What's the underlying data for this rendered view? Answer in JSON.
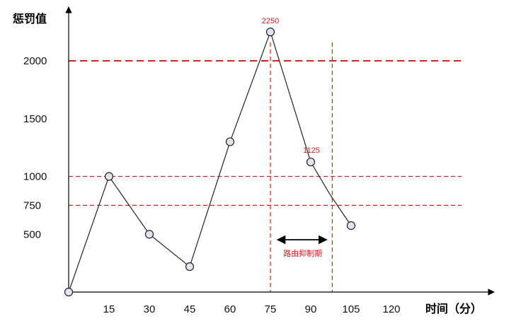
{
  "chart_data": {
    "type": "line",
    "xlabel": "时间（分）",
    "ylabel": "惩罚值",
    "x_ticks": [
      "15",
      "30",
      "45",
      "60",
      "75",
      "90",
      "105",
      "120"
    ],
    "y_ticks": [
      "500",
      "750",
      "1000",
      "1500",
      "2000"
    ],
    "xlim": [
      0,
      128
    ],
    "ylim": [
      0,
      2400
    ],
    "series": [
      {
        "x": [
          0,
          15,
          30,
          45,
          60,
          75,
          90,
          97,
          105
        ],
        "y": [
          0,
          1000,
          500,
          220,
          1300,
          2250,
          1125,
          850,
          575
        ]
      }
    ],
    "reference_lines": {
      "horizontal": [
        2000,
        1000,
        750
      ],
      "vertical": [
        75,
        98
      ]
    },
    "annotations": [
      {
        "text": "2250",
        "x": 75,
        "y": 2250
      },
      {
        "text": "1125",
        "x": 90,
        "y": 1125
      },
      {
        "text": "路由抑制期",
        "from": 75,
        "to": 98
      }
    ],
    "colors": {
      "axis": "#000000",
      "series": "#222222",
      "reference": "#e02020",
      "marker_fill": "#dfe4ee"
    },
    "grid": false,
    "legend": "none"
  }
}
